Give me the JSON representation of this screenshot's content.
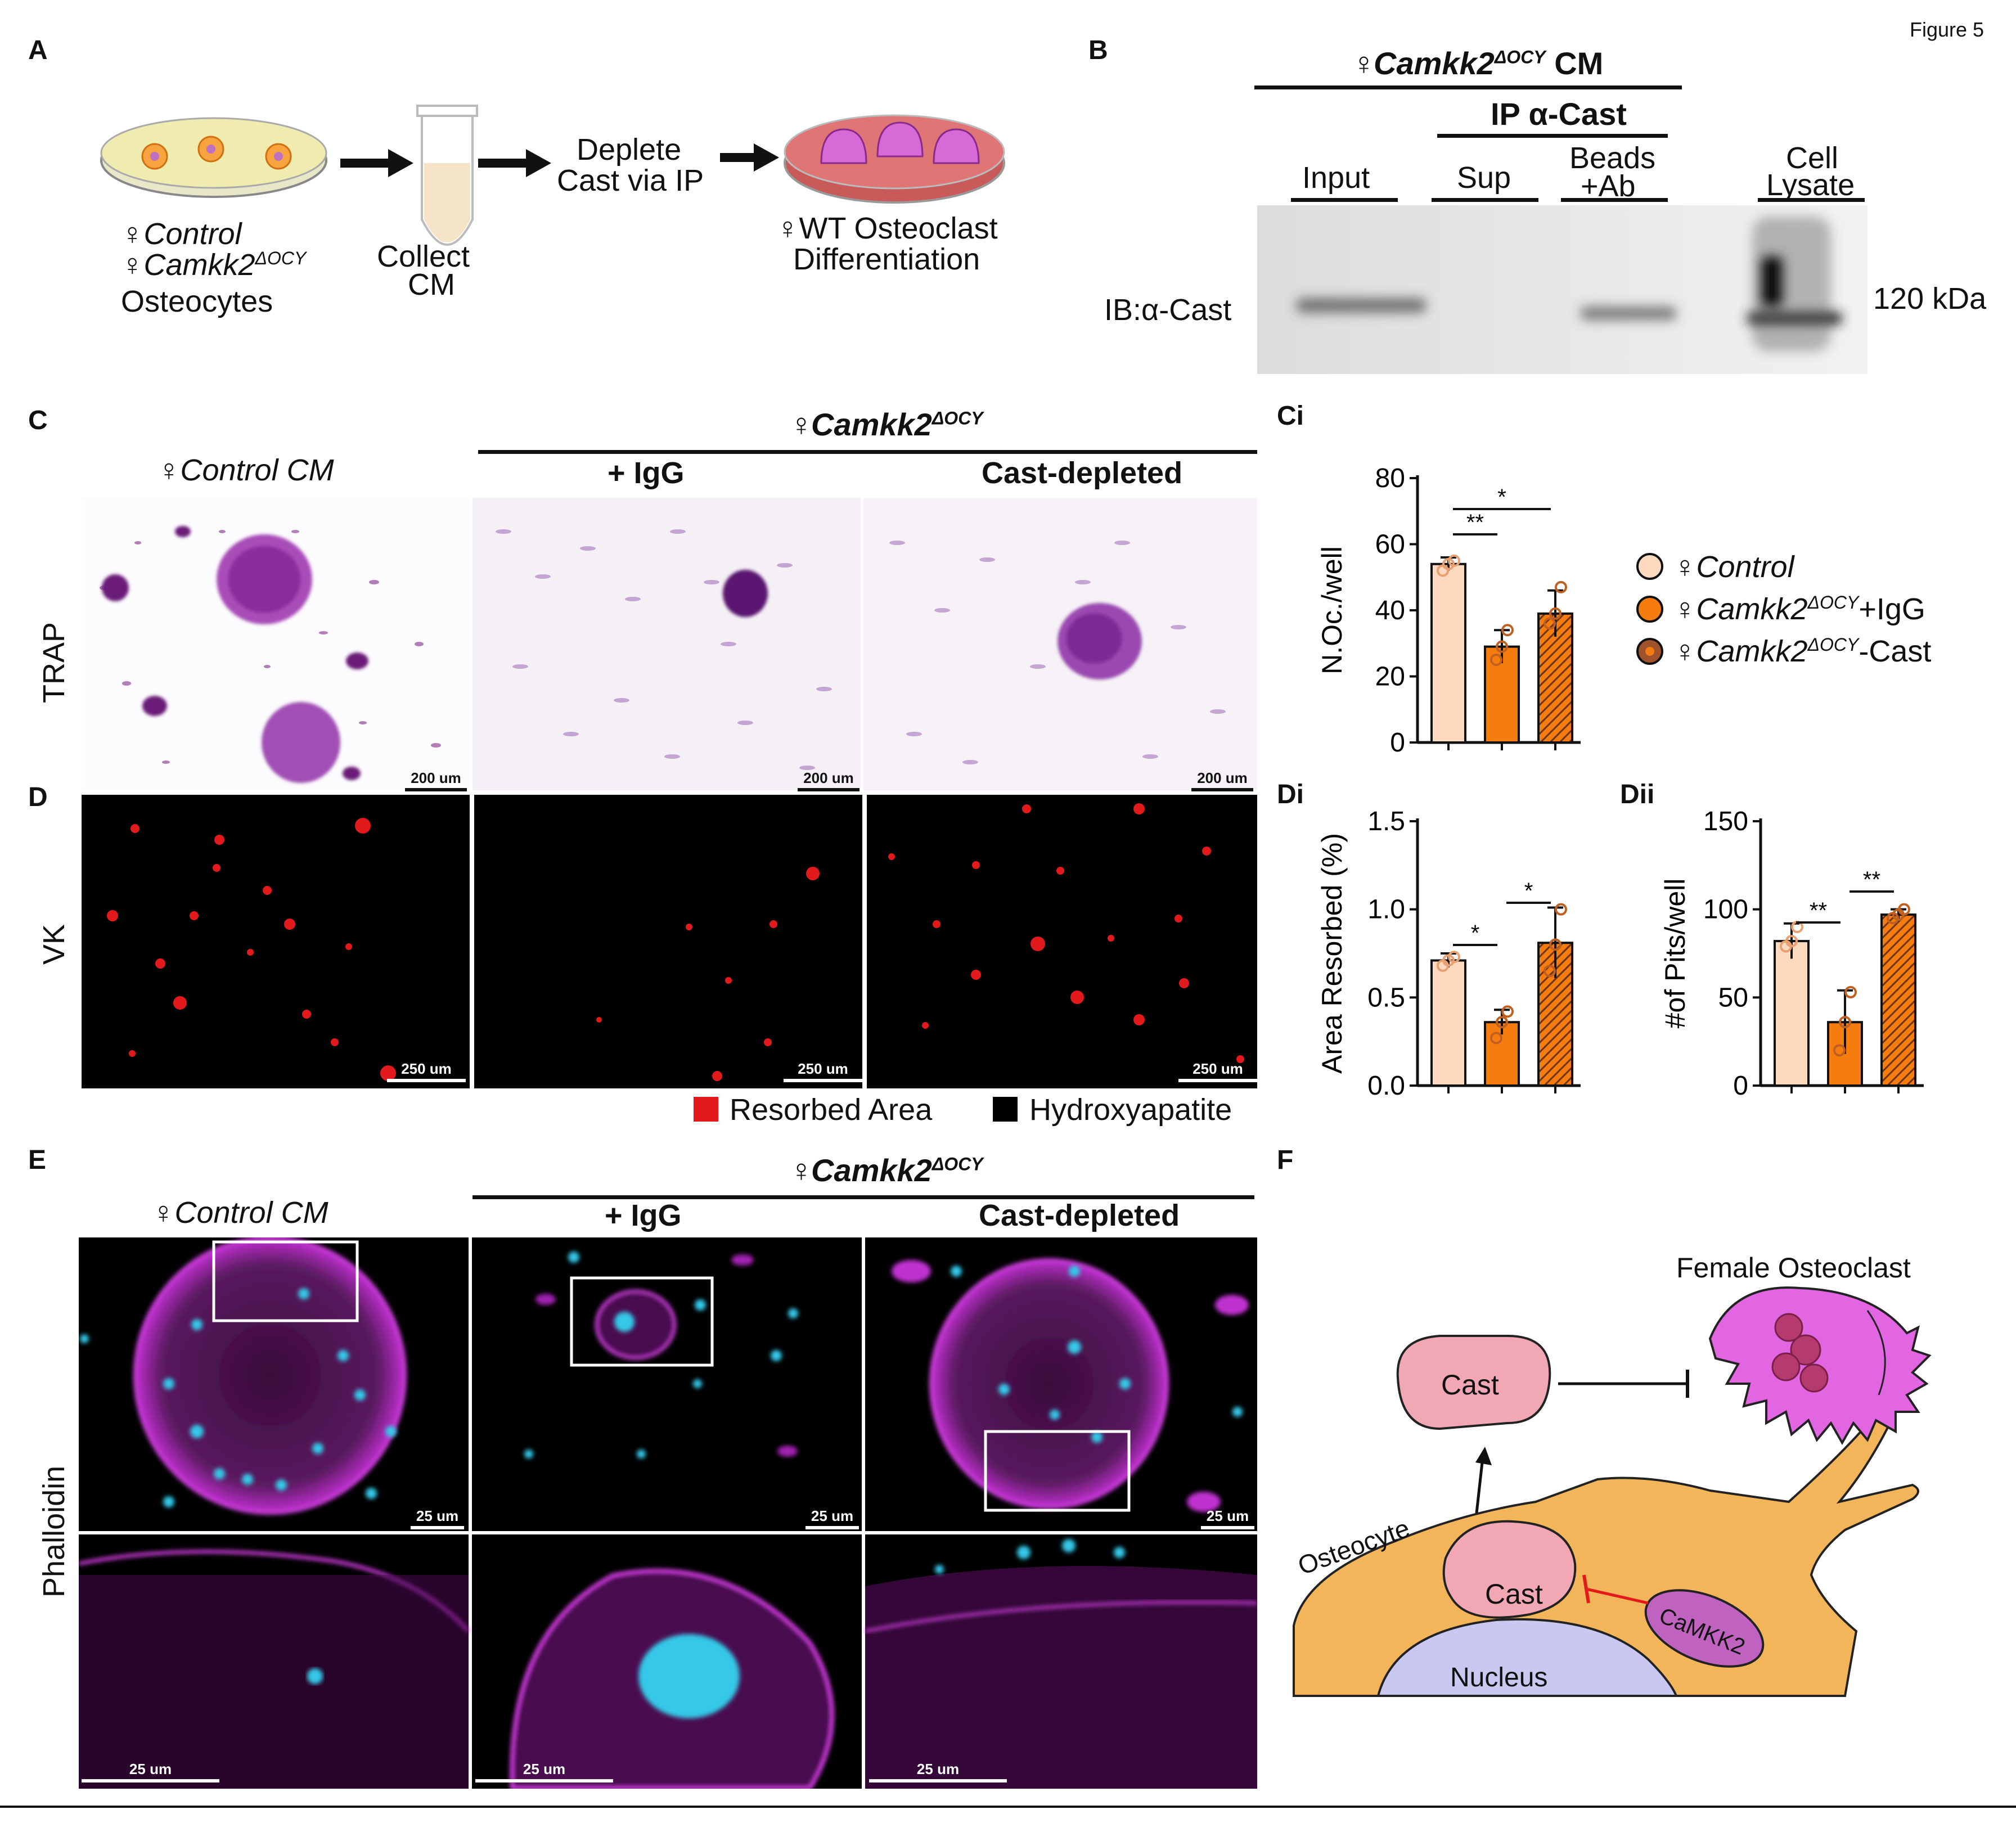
{
  "figure_label": "Figure 5",
  "panel_labels": {
    "A": "A",
    "B": "B",
    "C": "C",
    "Ci": "Ci",
    "D": "D",
    "Di": "Di",
    "Dii": "Dii",
    "E": "E",
    "F": "F"
  },
  "panelA": {
    "dish1_label_1": "♀Control",
    "dish1_label_2": "♀Camkk2",
    "dish1_label_2_sup": "ΔOCY",
    "dish1_label_3": "Osteocytes",
    "tube_label_1": "Collect",
    "tube_label_2": "CM",
    "step3_1": "Deplete",
    "step3_2": "Cast via IP",
    "dish2_label_1": "♀WT Osteoclast",
    "dish2_label_2": "Differentiation"
  },
  "panelB": {
    "header_main": "♀Camkk2",
    "header_sup": "ΔOCY",
    "header_suffix": " CM",
    "ip_header": "IP α-Cast",
    "lanes": [
      "Input",
      "Sup",
      "Beads",
      "+Ab",
      "Cell",
      "Lysate"
    ],
    "ib_label": "IB:α-Cast",
    "kda_label": "120 kDa"
  },
  "panelC": {
    "control_title": "♀Control CM",
    "camkk2_title": "♀Camkk2",
    "camkk2_sup": "ΔOCY",
    "igg": "+ IgG",
    "cast_depleted": "Cast-depleted",
    "row_label": "TRAP",
    "scalebar": "200 um"
  },
  "panelD": {
    "row_label": "VK",
    "scalebar": "250 um",
    "legend_resorbed": "Resorbed Area",
    "legend_hydroxy": "Hydroxyapatite",
    "color_resorbed": "#e31a1c",
    "color_hydroxy": "#000000"
  },
  "panelE": {
    "control_title": "♀Control CM",
    "camkk2_title": "♀Camkk2",
    "camkk2_sup": "ΔOCY",
    "igg": "+ IgG",
    "cast_depleted": "Cast-depleted",
    "row_label": "Phalloidin",
    "scalebar": "25 um"
  },
  "legend": {
    "control": "♀Control",
    "camkk2_igg_main": "♀Camkk2",
    "camkk2_igg_sup": "ΔOCY",
    "camkk2_igg_suffix": "+IgG",
    "camkk2_cast_main": "♀Camkk2",
    "camkk2_cast_sup": "ΔOCY",
    "camkk2_cast_suffix": "-Cast",
    "color_control": "#fcd9bf",
    "color_igg": "#f57c0f",
    "color_cast": "#a0522d"
  },
  "panelF": {
    "female_osteoclast": "Female Osteoclast",
    "cast_top": "Cast",
    "cast_inner": "Cast",
    "osteocyte": "Osteocyte",
    "nucleus": "Nucleus",
    "camkk2": "CaMKK2"
  },
  "chart_data": [
    {
      "type": "bar",
      "id": "Ci",
      "ylabel": "N.Oc./well",
      "ylim": [
        0,
        80
      ],
      "yticks": [
        "0",
        "20",
        "40",
        "60",
        "80"
      ],
      "categories": [
        "Control",
        "Camkk2-IgG",
        "Camkk2-Cast"
      ],
      "values": [
        54,
        29,
        39
      ],
      "errors": [
        2,
        5,
        7
      ],
      "points": [
        [
          52,
          54,
          55
        ],
        [
          25,
          29,
          34
        ],
        [
          36,
          39,
          47
        ]
      ],
      "significance": [
        {
          "from": 0,
          "to": 1,
          "label": "**"
        },
        {
          "from": 0,
          "to": 2,
          "label": "*"
        }
      ]
    },
    {
      "type": "bar",
      "id": "Di",
      "ylabel": "Area Resorbed (%)",
      "ylim": [
        0,
        1.5
      ],
      "yticks": [
        "0.0",
        "0.5",
        "1.0",
        "1.5"
      ],
      "categories": [
        "Control",
        "Camkk2-IgG",
        "Camkk2-Cast"
      ],
      "values": [
        0.71,
        0.36,
        0.81
      ],
      "errors": [
        0.04,
        0.07,
        0.2
      ],
      "points": [
        [
          0.68,
          0.71,
          0.73
        ],
        [
          0.27,
          0.36,
          0.42
        ],
        [
          0.65,
          0.8,
          1.0
        ]
      ],
      "significance": [
        {
          "from": 0,
          "to": 1,
          "label": "*"
        },
        {
          "from": 1,
          "to": 2,
          "label": "*"
        }
      ]
    },
    {
      "type": "bar",
      "id": "Dii",
      "ylabel": "#of Pits/well",
      "ylim": [
        0,
        150
      ],
      "yticks": [
        "0",
        "50",
        "100",
        "150"
      ],
      "categories": [
        "Control",
        "Camkk2-IgG",
        "Camkk2-Cast"
      ],
      "values": [
        82,
        36,
        97
      ],
      "errors": [
        10,
        18,
        3
      ],
      "points": [
        [
          79,
          82,
          90
        ],
        [
          20,
          36,
          53
        ],
        [
          95,
          97,
          100
        ]
      ],
      "significance": [
        {
          "from": 0,
          "to": 1,
          "label": "**"
        },
        {
          "from": 1,
          "to": 2,
          "label": "**"
        }
      ]
    }
  ]
}
